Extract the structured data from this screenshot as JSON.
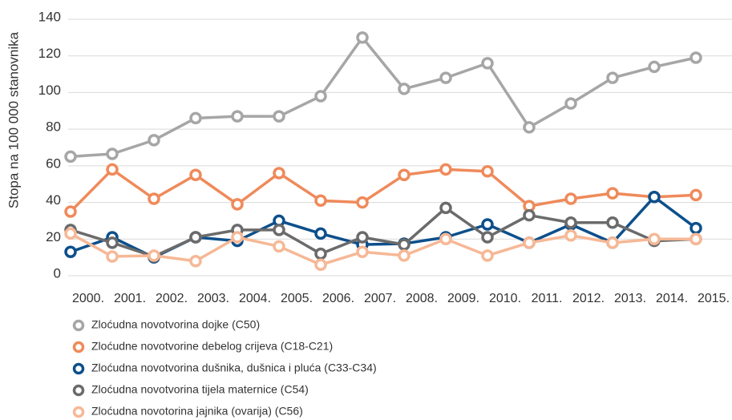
{
  "chart_data": {
    "type": "line",
    "y_label": "Stopa na 100 000 stanovnika",
    "categories": [
      "2000.",
      "2001.",
      "2002.",
      "2003.",
      "2004.",
      "2005.",
      "2006.",
      "2007.",
      "2008.",
      "2009.",
      "2010.",
      "2011.",
      "2012.",
      "2013.",
      "2014.",
      "2015."
    ],
    "ylim": [
      0,
      140
    ],
    "yticks": [
      0,
      20,
      40,
      60,
      80,
      100,
      120,
      140
    ],
    "grid": true,
    "series": [
      {
        "name": "Zloćudna novotvorina dojke (C50)",
        "color": "#a6a6a6",
        "values": [
          65,
          66.5,
          74,
          86,
          87,
          87,
          98,
          130,
          102,
          108,
          116,
          81,
          94,
          108,
          114,
          119
        ]
      },
      {
        "name": "Zloćudne novotvorine debelog crijeva (C18-C21)",
        "color": "#ef8a5a",
        "values": [
          35,
          58,
          42,
          55,
          39,
          56,
          41,
          40,
          55,
          58,
          57,
          38,
          42,
          45,
          43,
          44
        ]
      },
      {
        "name": "Zloćudna novotvorina dušnika, dušnica i pluća (C33-C34)",
        "color": "#0d4f8b",
        "values": [
          13,
          21,
          10,
          21,
          19,
          30,
          23,
          17,
          17.5,
          21,
          28,
          18,
          28,
          18,
          43,
          26
        ]
      },
      {
        "name": "Zloćudna novotvorina tijela maternice (C54)",
        "color": "#6b6b6b",
        "values": [
          25,
          18,
          10.5,
          21,
          25,
          25,
          12,
          21,
          17,
          37,
          21,
          33,
          29,
          29,
          19,
          20
        ]
      },
      {
        "name": "Zloćudna novotorina jajnika (ovarija) (C56)",
        "color": "#f6b896",
        "values": [
          23,
          10.5,
          11,
          8,
          21,
          16,
          6,
          13,
          11,
          20,
          11,
          18,
          22,
          18,
          20,
          20
        ]
      }
    ]
  }
}
